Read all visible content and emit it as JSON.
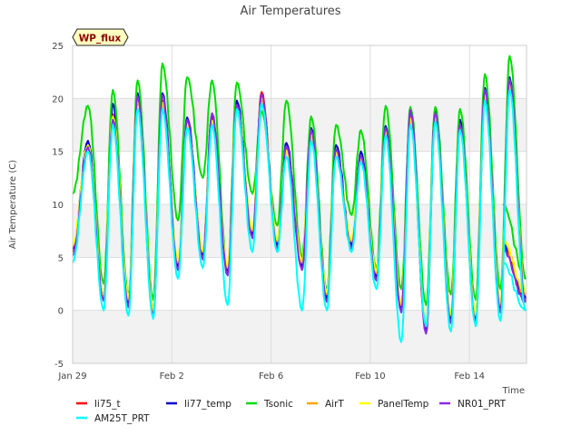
{
  "chart_data": {
    "type": "line",
    "title": "Air Temperatures",
    "xlabel": "Time",
    "ylabel": "Air Temperature (C)",
    "badge": "WP_flux",
    "xlim": [
      0,
      18.3
    ],
    "ylim": [
      -5,
      25
    ],
    "x_ticks": [
      {
        "label": "Jan 29",
        "value": 0
      },
      {
        "label": "Feb 2",
        "value": 4
      },
      {
        "label": "Feb 6",
        "value": 8
      },
      {
        "label": "Feb 10",
        "value": 12
      },
      {
        "label": "Feb 14",
        "value": 16
      }
    ],
    "y_ticks": [
      -5,
      0,
      5,
      10,
      15,
      20,
      25
    ],
    "bands": [
      [
        -5,
        0
      ],
      [
        5,
        10
      ],
      [
        15,
        20
      ]
    ],
    "band_color": "#f2f2f2",
    "legend_position": "bottom",
    "day_max_x_offset": 0.62,
    "day_min_x_offset": 0.25,
    "series": [
      {
        "name": "li75_t",
        "color": "#ff0000",
        "start": 5.5,
        "max": [
          15.8,
          18.5,
          20.0,
          19.8,
          17.9,
          18.2,
          19.5,
          20.6,
          15.3,
          16.8,
          15.0,
          14.5,
          17.0,
          18.2,
          18.5,
          17.5,
          20.5,
          21.5
        ],
        "min": [
          1.0,
          0.5,
          -0.5,
          4.0,
          5.0,
          3.5,
          7.0,
          6.0,
          4.0,
          1.0,
          6.0,
          3.0,
          0.0,
          -2.0,
          -1.0,
          -1.0,
          0.0,
          1.0
        ],
        "end": 6.0
      },
      {
        "name": "li77_temp",
        "color": "#0000cc",
        "start": 5.8,
        "max": [
          16.0,
          19.5,
          20.5,
          20.5,
          18.2,
          18.5,
          19.8,
          20.2,
          15.8,
          17.2,
          15.6,
          15.0,
          17.4,
          18.8,
          18.8,
          18.0,
          21.0,
          22.0
        ],
        "min": [
          1.2,
          0.8,
          -0.3,
          4.2,
          5.3,
          3.8,
          7.2,
          6.2,
          4.2,
          1.2,
          6.2,
          3.2,
          0.3,
          -1.8,
          -0.8,
          -0.8,
          0.3,
          1.2
        ],
        "end": 6.2
      },
      {
        "name": "Tsonic",
        "color": "#00dd00",
        "start": 11.0,
        "max": [
          19.3,
          20.8,
          21.7,
          23.3,
          22.0,
          21.7,
          21.5,
          18.8,
          19.8,
          18.3,
          17.5,
          17.0,
          19.3,
          19.2,
          19.2,
          19.0,
          22.3,
          24.0
        ],
        "min": [
          2.5,
          1.5,
          1.0,
          8.5,
          12.5,
          4.0,
          11.0,
          8.0,
          5.0,
          2.0,
          9.0,
          4.0,
          2.0,
          0.5,
          1.5,
          1.0,
          2.0,
          3.0
        ],
        "end": 10.0
      },
      {
        "name": "AirT",
        "color": "#ffa500",
        "start": 6.0,
        "max": [
          15.5,
          18.2,
          19.8,
          19.5,
          17.5,
          17.8,
          19.2,
          20.0,
          15.0,
          16.5,
          14.8,
          14.2,
          16.8,
          18.0,
          18.2,
          17.2,
          20.2,
          21.2
        ],
        "min": [
          1.3,
          1.0,
          0.0,
          4.5,
          5.5,
          4.0,
          7.5,
          6.5,
          4.5,
          1.5,
          6.5,
          3.5,
          0.5,
          -1.5,
          -0.5,
          -0.5,
          0.5,
          1.5
        ],
        "end": 6.5
      },
      {
        "name": "PanelTemp",
        "color": "#ffff00",
        "start": 6.2,
        "max": [
          15.6,
          18.3,
          19.9,
          19.6,
          17.6,
          17.9,
          19.3,
          20.1,
          15.1,
          16.6,
          14.9,
          14.3,
          16.9,
          18.1,
          18.3,
          17.3,
          20.3,
          21.3
        ],
        "min": [
          1.5,
          1.2,
          0.2,
          4.7,
          5.7,
          4.2,
          7.7,
          6.7,
          4.7,
          1.7,
          6.7,
          3.7,
          0.7,
          -1.3,
          -0.3,
          -0.3,
          0.7,
          1.7
        ],
        "end": 6.7
      },
      {
        "name": "NR01_PRT",
        "color": "#8a2be2",
        "start": 5.2,
        "max": [
          15.4,
          18.0,
          20.2,
          20.3,
          18.0,
          18.6,
          19.4,
          20.4,
          15.5,
          17.0,
          15.2,
          14.6,
          17.2,
          18.9,
          18.6,
          17.6,
          20.8,
          21.8
        ],
        "min": [
          0.9,
          0.3,
          -0.6,
          3.8,
          4.8,
          3.3,
          6.8,
          5.8,
          3.8,
          0.8,
          5.8,
          2.8,
          -0.2,
          -2.2,
          -1.2,
          -1.2,
          -0.2,
          0.8
        ],
        "end": 5.8
      },
      {
        "name": "AM25T_PRT",
        "color": "#00ffff",
        "start": 4.5,
        "max": [
          15.0,
          17.5,
          19.0,
          19.0,
          17.2,
          17.5,
          19.0,
          19.5,
          14.5,
          16.0,
          14.5,
          14.0,
          16.5,
          17.5,
          17.8,
          17.0,
          19.8,
          20.8
        ],
        "min": [
          0.0,
          -0.5,
          -0.8,
          3.0,
          4.0,
          0.5,
          5.5,
          5.5,
          0.0,
          0.0,
          5.5,
          2.0,
          -3.0,
          -1.5,
          -2.0,
          -1.5,
          -1.0,
          0.0
        ],
        "end": 4.5
      }
    ]
  }
}
